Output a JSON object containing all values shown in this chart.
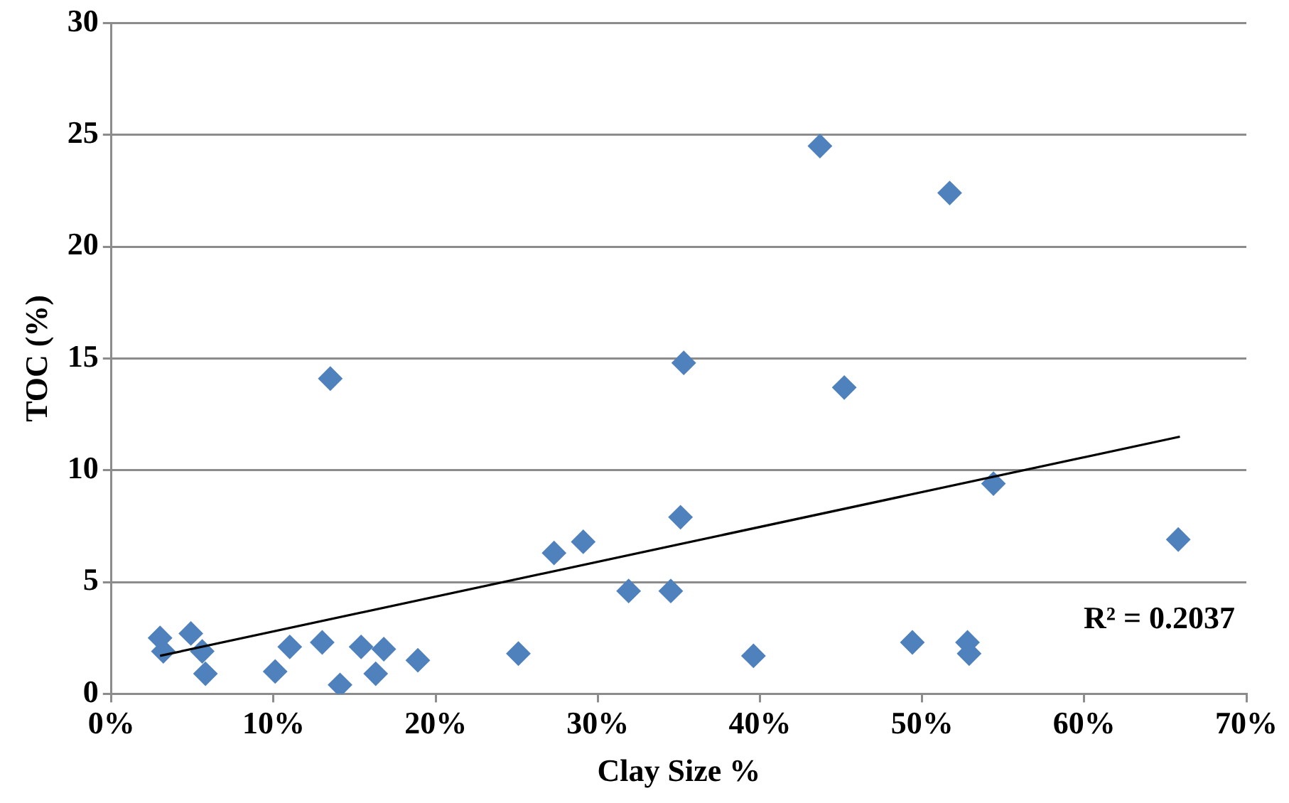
{
  "chart_data": {
    "type": "scatter",
    "xlabel": "Clay Size %",
    "ylabel": "TOC (%)",
    "xlim": [
      0,
      70
    ],
    "xticks": [
      {
        "value": 0,
        "label": "0%"
      },
      {
        "value": 10,
        "label": "10%"
      },
      {
        "value": 20,
        "label": "20%"
      },
      {
        "value": 30,
        "label": "30%"
      },
      {
        "value": 40,
        "label": "40%"
      },
      {
        "value": 50,
        "label": "50%"
      },
      {
        "value": 60,
        "label": "60%"
      },
      {
        "value": 70,
        "label": "70%"
      }
    ],
    "ylim": [
      0,
      30
    ],
    "yticks": [
      0,
      5,
      10,
      15,
      20,
      25,
      30
    ],
    "grid": "y",
    "legend": false,
    "marker": "diamond",
    "series": [
      {
        "color": "#4f81bd",
        "x": [
          3.0,
          3.2,
          4.9,
          5.6,
          5.8,
          10.1,
          11.0,
          13.0,
          13.5,
          14.1,
          15.4,
          16.3,
          16.8,
          18.9,
          25.1,
          27.3,
          29.1,
          31.9,
          34.5,
          35.1,
          35.3,
          39.6,
          43.7,
          45.2,
          49.4,
          51.7,
          52.8,
          52.9,
          54.4,
          65.8
        ],
        "values": [
          2.5,
          1.9,
          2.7,
          1.9,
          0.9,
          1.0,
          2.1,
          2.3,
          14.1,
          0.4,
          2.1,
          0.9,
          2.0,
          1.5,
          1.8,
          6.3,
          6.8,
          4.6,
          4.6,
          7.9,
          14.8,
          1.7,
          24.5,
          13.7,
          2.3,
          22.4,
          2.3,
          1.8,
          9.4,
          6.9
        ]
      },
      {
        "type": "line",
        "marker": "none",
        "color": "#000000",
        "x": [
          3.0,
          65.9
        ],
        "values": [
          1.7,
          11.5
        ]
      }
    ],
    "annotations": [
      "R² = 0.2037"
    ]
  }
}
